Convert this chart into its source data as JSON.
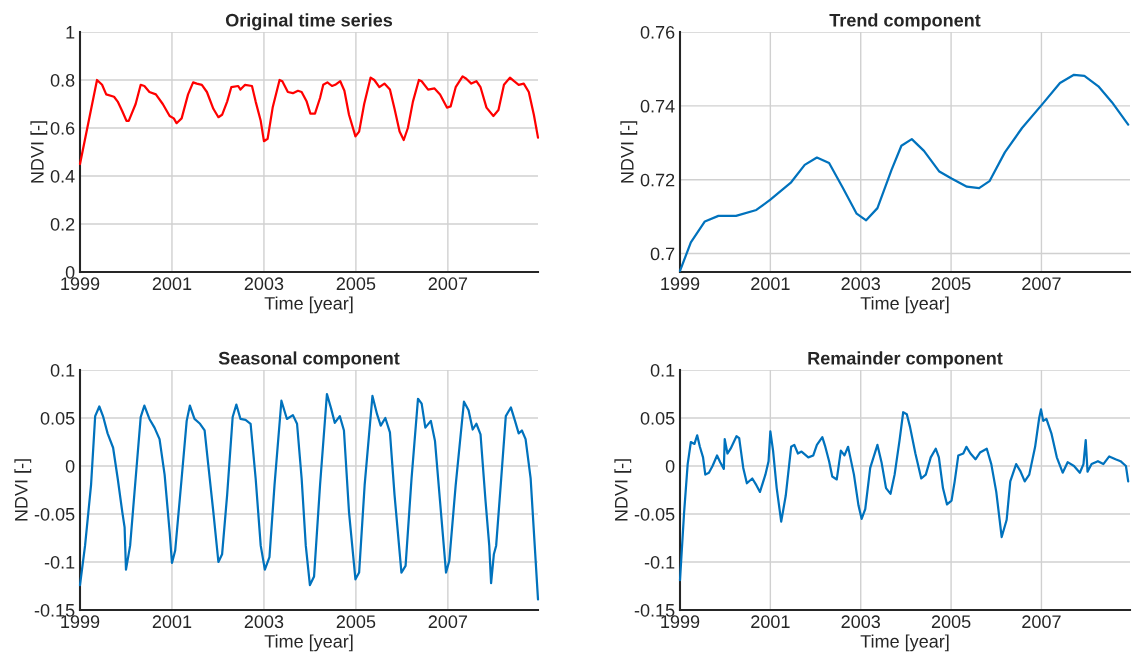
{
  "chart_data": [
    {
      "type": "line",
      "title": "Original time series",
      "xlabel": "Time [year]",
      "ylabel": "NDVI [-]",
      "xlim": [
        1999,
        2008.96
      ],
      "xticks": [
        1999,
        2001,
        2003,
        2005,
        2007
      ],
      "ylim": [
        0,
        1
      ],
      "yticks": [
        0,
        0.2,
        0.4,
        0.6,
        0.8,
        1
      ],
      "grid": true,
      "x": [
        1999.0,
        1999.37,
        1999.48,
        1999.57,
        1999.74,
        1999.82,
        1999.92,
        2000.01,
        2000.06,
        2000.21,
        2000.32,
        2000.4,
        2000.51,
        2000.65,
        2000.8,
        2000.95,
        2001.04,
        2001.1,
        2001.21,
        2001.35,
        2001.46,
        2001.54,
        2001.65,
        2001.76,
        2001.9,
        2002.01,
        2002.09,
        2002.2,
        2002.29,
        2002.44,
        2002.49,
        2002.59,
        2002.74,
        2002.82,
        2002.93,
        2003.0,
        2003.08,
        2003.19,
        2003.34,
        2003.4,
        2003.52,
        2003.63,
        2003.74,
        2003.82,
        2003.93,
        2004.01,
        2004.11,
        2004.22,
        2004.29,
        2004.38,
        2004.48,
        2004.55,
        2004.66,
        2004.75,
        2004.85,
        2004.99,
        2005.07,
        2005.18,
        2005.32,
        2005.4,
        2005.51,
        2005.62,
        2005.74,
        2005.84,
        2005.95,
        2006.04,
        2006.13,
        2006.24,
        2006.37,
        2006.43,
        2006.57,
        2006.71,
        2006.83,
        2006.98,
        2007.06,
        2007.17,
        2007.32,
        2007.4,
        2007.51,
        2007.62,
        2007.71,
        2007.84,
        2007.99,
        2008.1,
        2008.22,
        2008.35,
        2008.44,
        2008.54,
        2008.65,
        2008.76,
        2008.87,
        2008.96
      ],
      "series": [
        {
          "color": "#ff0000",
          "values": [
            0.45,
            0.8,
            0.78,
            0.74,
            0.73,
            0.71,
            0.67,
            0.63,
            0.63,
            0.7,
            0.78,
            0.775,
            0.75,
            0.74,
            0.7,
            0.65,
            0.64,
            0.62,
            0.64,
            0.74,
            0.79,
            0.785,
            0.78,
            0.75,
            0.68,
            0.645,
            0.655,
            0.71,
            0.77,
            0.775,
            0.76,
            0.78,
            0.775,
            0.71,
            0.63,
            0.545,
            0.555,
            0.685,
            0.8,
            0.795,
            0.75,
            0.745,
            0.755,
            0.75,
            0.71,
            0.66,
            0.66,
            0.725,
            0.78,
            0.79,
            0.775,
            0.78,
            0.795,
            0.755,
            0.655,
            0.565,
            0.585,
            0.7,
            0.81,
            0.8,
            0.77,
            0.785,
            0.76,
            0.68,
            0.585,
            0.55,
            0.6,
            0.71,
            0.8,
            0.795,
            0.76,
            0.765,
            0.74,
            0.685,
            0.69,
            0.77,
            0.815,
            0.805,
            0.785,
            0.795,
            0.77,
            0.685,
            0.65,
            0.675,
            0.78,
            0.81,
            0.795,
            0.78,
            0.785,
            0.75,
            0.655,
            0.56
          ]
        }
      ]
    },
    {
      "type": "line",
      "title": "Trend component",
      "xlabel": "Time [year]",
      "ylabel": "NDVI [-]",
      "xlim": [
        1999,
        2008.96
      ],
      "xticks": [
        1999,
        2001,
        2003,
        2005,
        2007
      ],
      "ylim": [
        0.695,
        0.76
      ],
      "yticks": [
        0.7,
        0.72,
        0.74,
        0.76
      ],
      "grid": true,
      "x": [
        1999.0,
        1999.24,
        1999.55,
        1999.85,
        2000.24,
        2000.69,
        2001.0,
        2001.46,
        2001.76,
        2002.03,
        2002.3,
        2002.6,
        2002.91,
        2003.12,
        2003.37,
        2003.68,
        2003.9,
        2004.13,
        2004.4,
        2004.74,
        2005.01,
        2005.35,
        2005.62,
        2005.85,
        2006.19,
        2006.57,
        2007.03,
        2007.41,
        2007.72,
        2007.95,
        2008.26,
        2008.56,
        2008.92
      ],
      "series": [
        {
          "color": "#0072bd",
          "values": [
            0.6953,
            0.703,
            0.7087,
            0.7102,
            0.7102,
            0.7118,
            0.7146,
            0.7193,
            0.724,
            0.726,
            0.7245,
            0.7179,
            0.7108,
            0.709,
            0.7123,
            0.7226,
            0.7292,
            0.731,
            0.7278,
            0.7222,
            0.7203,
            0.7181,
            0.7177,
            0.7196,
            0.7274,
            0.734,
            0.7406,
            0.7462,
            0.7484,
            0.7481,
            0.7453,
            0.741,
            0.7349
          ]
        }
      ]
    },
    {
      "type": "line",
      "title": "Seasonal component",
      "xlabel": "Time [year]",
      "ylabel": "NDVI [-]",
      "xlim": [
        1999,
        2008.96
      ],
      "xticks": [
        1999,
        2001,
        2003,
        2005,
        2007
      ],
      "ylim": [
        -0.15,
        0.1
      ],
      "yticks": [
        -0.15,
        -0.1,
        -0.05,
        0,
        0.05,
        0.1
      ],
      "grid": true,
      "x": [
        1999.0,
        1999.11,
        1999.24,
        1999.33,
        1999.42,
        1999.5,
        1999.6,
        1999.72,
        1999.82,
        1999.92,
        1999.97,
        2000.0,
        2000.09,
        2000.21,
        2000.32,
        2000.4,
        2000.51,
        2000.62,
        2000.73,
        2000.84,
        2000.95,
        2001.0,
        2001.07,
        2001.21,
        2001.32,
        2001.39,
        2001.49,
        2001.61,
        2001.71,
        2001.79,
        2001.9,
        2002.01,
        2002.09,
        2002.2,
        2002.32,
        2002.4,
        2002.49,
        2002.6,
        2002.71,
        2002.82,
        2002.93,
        2003.02,
        2003.12,
        2003.23,
        2003.38,
        2003.5,
        2003.63,
        2003.72,
        2003.82,
        2003.91,
        2004.0,
        2004.09,
        2004.22,
        2004.37,
        2004.46,
        2004.54,
        2004.65,
        2004.74,
        2004.85,
        2004.99,
        2005.07,
        2005.19,
        2005.36,
        2005.46,
        2005.54,
        2005.64,
        2005.74,
        2005.84,
        2005.99,
        2006.08,
        2006.21,
        2006.35,
        2006.43,
        2006.51,
        2006.63,
        2006.72,
        2006.83,
        2006.96,
        2007.03,
        2007.17,
        2007.35,
        2007.45,
        2007.54,
        2007.62,
        2007.71,
        2007.82,
        2007.9,
        2007.94,
        2008.0,
        2008.05,
        2008.16,
        2008.26,
        2008.37,
        2008.46,
        2008.54,
        2008.61,
        2008.69,
        2008.8,
        2008.96
      ],
      "series": [
        {
          "color": "#0072bd",
          "values": [
            -0.124,
            -0.083,
            -0.02,
            0.052,
            0.062,
            0.052,
            0.034,
            0.019,
            -0.013,
            -0.048,
            -0.064,
            -0.108,
            -0.083,
            -0.013,
            0.051,
            0.063,
            0.049,
            0.04,
            0.028,
            -0.009,
            -0.069,
            -0.101,
            -0.088,
            -0.013,
            0.047,
            0.063,
            0.049,
            0.044,
            0.037,
            0.001,
            -0.048,
            -0.1,
            -0.092,
            -0.03,
            0.051,
            0.064,
            0.049,
            0.048,
            0.044,
            -0.013,
            -0.083,
            -0.108,
            -0.095,
            -0.02,
            0.068,
            0.049,
            0.053,
            0.044,
            -0.013,
            -0.083,
            -0.124,
            -0.115,
            -0.02,
            0.075,
            0.06,
            0.045,
            0.052,
            0.037,
            -0.048,
            -0.118,
            -0.111,
            -0.02,
            0.073,
            0.054,
            0.042,
            0.05,
            0.035,
            -0.03,
            -0.111,
            -0.104,
            -0.013,
            0.07,
            0.065,
            0.04,
            0.047,
            0.026,
            -0.037,
            -0.111,
            -0.099,
            -0.02,
            0.067,
            0.058,
            0.038,
            0.044,
            0.033,
            -0.037,
            -0.083,
            -0.122,
            -0.092,
            -0.083,
            -0.013,
            0.052,
            0.061,
            0.047,
            0.034,
            0.037,
            0.028,
            -0.013,
            -0.139
          ]
        }
      ]
    },
    {
      "type": "line",
      "title": "Remainder component",
      "xlabel": "Time [year]",
      "ylabel": "NDVI [-]",
      "xlim": [
        1999,
        2008.96
      ],
      "xticks": [
        1999,
        2001,
        2003,
        2005,
        2007
      ],
      "ylim": [
        -0.15,
        0.1
      ],
      "yticks": [
        -0.15,
        -0.1,
        -0.05,
        0,
        0.05,
        0.1
      ],
      "grid": true,
      "x": [
        1999.0,
        1999.09,
        1999.17,
        1999.24,
        1999.32,
        1999.38,
        1999.44,
        1999.51,
        1999.56,
        1999.64,
        1999.72,
        1999.82,
        1999.89,
        1999.97,
        1999.99,
        2000.05,
        2000.12,
        2000.25,
        2000.31,
        2000.4,
        2000.48,
        2000.6,
        2000.69,
        2000.77,
        2000.89,
        2000.96,
        2001.0,
        2001.06,
        2001.14,
        2001.24,
        2001.34,
        2001.46,
        2001.53,
        2001.61,
        2001.69,
        2001.84,
        2001.95,
        2002.03,
        2002.15,
        2002.21,
        2002.3,
        2002.37,
        2002.47,
        2002.56,
        2002.64,
        2002.72,
        2002.77,
        2002.85,
        2002.95,
        2003.02,
        2003.1,
        2003.21,
        2003.37,
        2003.46,
        2003.56,
        2003.66,
        2003.75,
        2003.86,
        2003.94,
        2004.02,
        2004.09,
        2004.21,
        2004.34,
        2004.44,
        2004.55,
        2004.66,
        2004.73,
        2004.82,
        2004.91,
        2005.01,
        2005.08,
        2005.16,
        2005.27,
        2005.34,
        2005.43,
        2005.54,
        2005.64,
        2005.79,
        2005.89,
        2006.0,
        2006.12,
        2006.23,
        2006.31,
        2006.44,
        2006.53,
        2006.63,
        2006.73,
        2006.86,
        2006.95,
        2006.99,
        2007.04,
        2007.11,
        2007.22,
        2007.34,
        2007.47,
        2007.58,
        2007.72,
        2007.85,
        2007.93,
        2007.98,
        2008.02,
        2008.11,
        2008.25,
        2008.37,
        2008.5,
        2008.64,
        2008.75,
        2008.87,
        2008.92
      ],
      "series": [
        {
          "color": "#0072bd",
          "values": [
            -0.119,
            -0.049,
            0.002,
            0.025,
            0.023,
            0.032,
            0.02,
            0.009,
            -0.009,
            -0.007,
            0.0,
            0.011,
            0.004,
            -0.003,
            0.028,
            0.013,
            0.018,
            0.031,
            0.029,
            -0.002,
            -0.018,
            -0.013,
            -0.02,
            -0.027,
            -0.009,
            0.005,
            0.036,
            0.016,
            -0.023,
            -0.058,
            -0.031,
            0.02,
            0.022,
            0.013,
            0.015,
            0.009,
            0.011,
            0.022,
            0.03,
            0.021,
            0.005,
            -0.011,
            -0.014,
            0.016,
            0.011,
            0.02,
            0.009,
            -0.009,
            -0.041,
            -0.055,
            -0.045,
            -0.002,
            0.022,
            0.004,
            -0.023,
            -0.029,
            -0.009,
            0.027,
            0.056,
            0.054,
            0.041,
            0.013,
            -0.013,
            -0.009,
            0.009,
            0.018,
            0.009,
            -0.023,
            -0.04,
            -0.036,
            -0.016,
            0.011,
            0.013,
            0.02,
            0.013,
            0.007,
            0.014,
            0.018,
            0.002,
            -0.027,
            -0.074,
            -0.056,
            -0.016,
            0.002,
            -0.005,
            -0.016,
            -0.009,
            0.02,
            0.05,
            0.059,
            0.047,
            0.049,
            0.034,
            0.009,
            -0.007,
            0.004,
            0.0,
            -0.007,
            0.002,
            0.027,
            -0.006,
            0.002,
            0.005,
            0.002,
            0.01,
            0.007,
            0.005,
            0.0,
            -0.016
          ]
        }
      ]
    }
  ]
}
